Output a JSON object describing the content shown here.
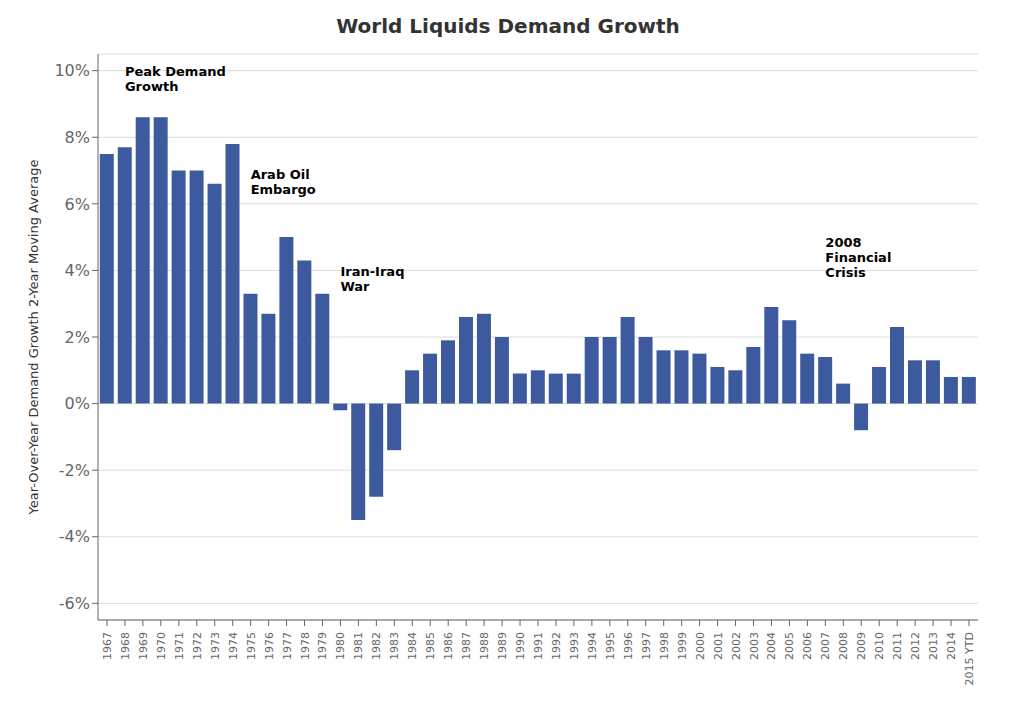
{
  "chart_data": {
    "type": "bar",
    "title": "World Liquids Demand Growth",
    "y_label": "Year-Over-Year Demand Growth 2-Year Moving Average",
    "color": "#3D5A9E",
    "ylim": [
      -0.065,
      0.105
    ],
    "yticks": [
      {
        "value": -0.06,
        "label": "-6%"
      },
      {
        "value": -0.04,
        "label": "-4%"
      },
      {
        "value": -0.02,
        "label": "-2%"
      },
      {
        "value": 0.0,
        "label": "0%"
      },
      {
        "value": 0.02,
        "label": "2%"
      },
      {
        "value": 0.04,
        "label": "4%"
      },
      {
        "value": 0.06,
        "label": "6%"
      },
      {
        "value": 0.08,
        "label": "8%"
      },
      {
        "value": 0.1,
        "label": "10%"
      }
    ],
    "grid": true,
    "categories": [
      "1967",
      "1968",
      "1969",
      "1970",
      "1971",
      "1972",
      "1973",
      "1974",
      "1975",
      "1976",
      "1977",
      "1978",
      "1979",
      "1980",
      "1981",
      "1982",
      "1983",
      "1984",
      "1985",
      "1986",
      "1987",
      "1988",
      "1989",
      "1990",
      "1991",
      "1992",
      "1993",
      "1994",
      "1995",
      "1996",
      "1997",
      "1998",
      "1999",
      "2000",
      "2001",
      "2002",
      "2003",
      "2004",
      "2005",
      "2006",
      "2007",
      "2008",
      "2009",
      "2010",
      "2011",
      "2012",
      "2013",
      "2014",
      "2015 YTD"
    ],
    "values": [
      0.075,
      0.077,
      0.086,
      0.086,
      0.07,
      0.07,
      0.066,
      0.078,
      0.033,
      0.027,
      0.05,
      0.043,
      0.033,
      -0.002,
      -0.035,
      -0.028,
      -0.014,
      0.01,
      0.015,
      0.019,
      0.026,
      0.027,
      0.02,
      0.009,
      0.01,
      0.009,
      0.009,
      0.02,
      0.02,
      0.026,
      0.02,
      0.016,
      0.016,
      0.015,
      0.011,
      0.01,
      0.017,
      0.029,
      0.025,
      0.015,
      0.014,
      0.006,
      -0.008,
      0.011,
      0.023,
      0.013,
      0.013,
      0.008,
      0.008
    ],
    "annotations": [
      {
        "text": "Peak Demand\nGrowth",
        "x": "1968",
        "y": 0.093
      },
      {
        "text": "Arab Oil\nEmbargo",
        "x": "1975",
        "y": 0.062
      },
      {
        "text": "Iran-Iraq\nWar",
        "x": "1980",
        "y": 0.033
      },
      {
        "text": "2008\nFinancial\nCrisis",
        "x": "2007",
        "y": 0.037
      }
    ]
  }
}
